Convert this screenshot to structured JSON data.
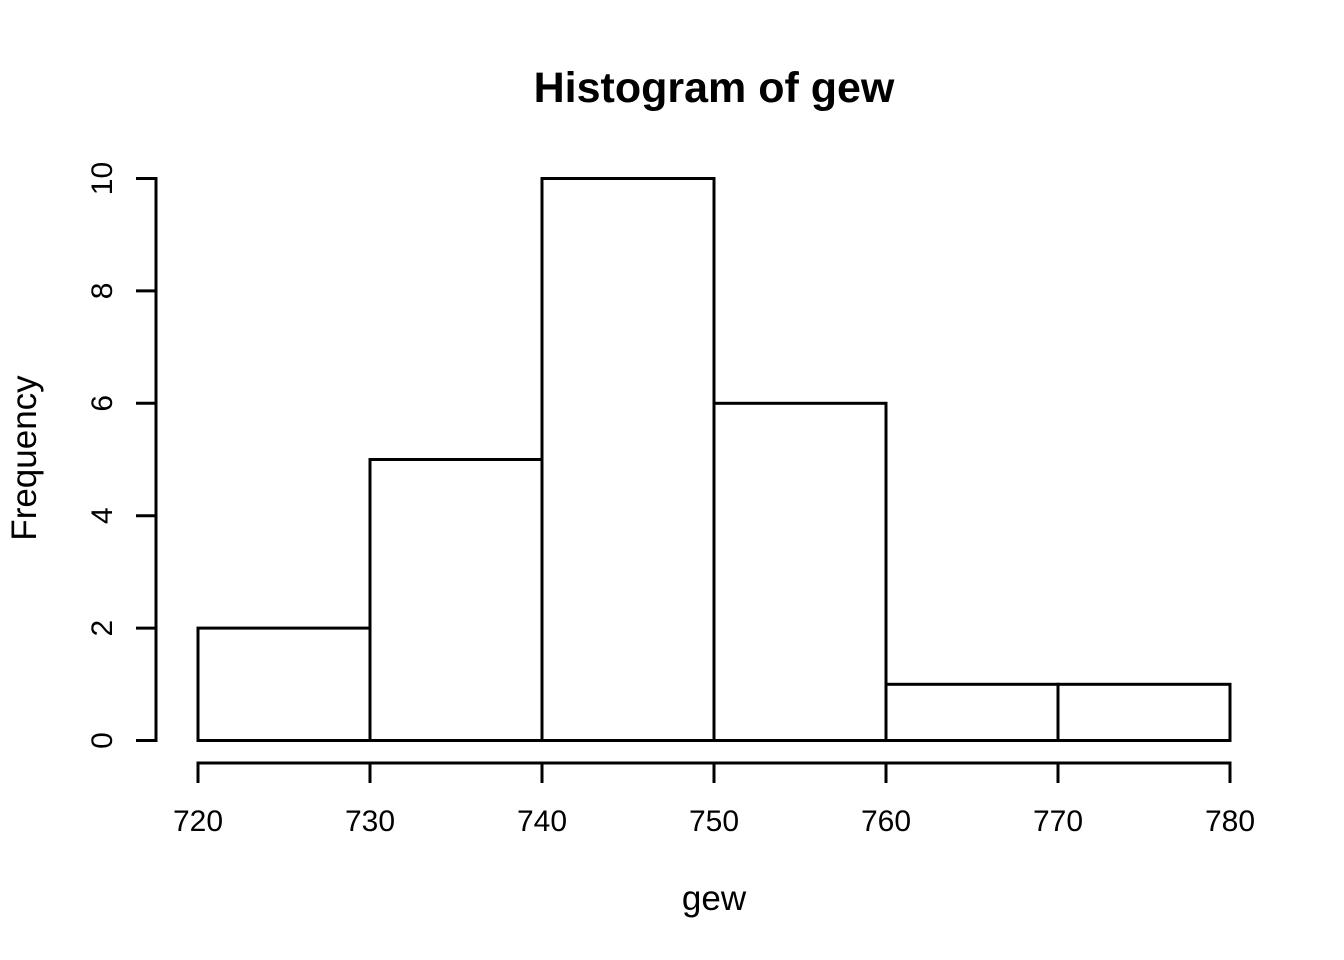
{
  "figure": {
    "background_color": "#ffffff",
    "foreground_color": "#000000"
  },
  "chart_data": {
    "type": "bar",
    "subtype": "histogram",
    "title": "Histogram of gew",
    "xlabel": "gew",
    "ylabel": "Frequency",
    "bins": [
      {
        "from": 720,
        "to": 730,
        "count": 2
      },
      {
        "from": 730,
        "to": 740,
        "count": 5
      },
      {
        "from": 740,
        "to": 750,
        "count": 10
      },
      {
        "from": 750,
        "to": 760,
        "count": 6
      },
      {
        "from": 760,
        "to": 770,
        "count": 1
      },
      {
        "from": 770,
        "to": 780,
        "count": 1
      }
    ],
    "categories": [
      "720-730",
      "730-740",
      "740-750",
      "750-760",
      "760-770",
      "770-780"
    ],
    "values": [
      2,
      5,
      10,
      6,
      1,
      1
    ],
    "x_ticks": [
      720,
      730,
      740,
      750,
      760,
      770,
      780
    ],
    "y_ticks": [
      0,
      2,
      4,
      6,
      8,
      10
    ],
    "xlim": [
      720,
      780
    ],
    "ylim": [
      0,
      10
    ],
    "bar_fill": "#ffffff",
    "bar_stroke": "#000000",
    "axis_color": "#000000",
    "grid": false,
    "legend": false
  }
}
